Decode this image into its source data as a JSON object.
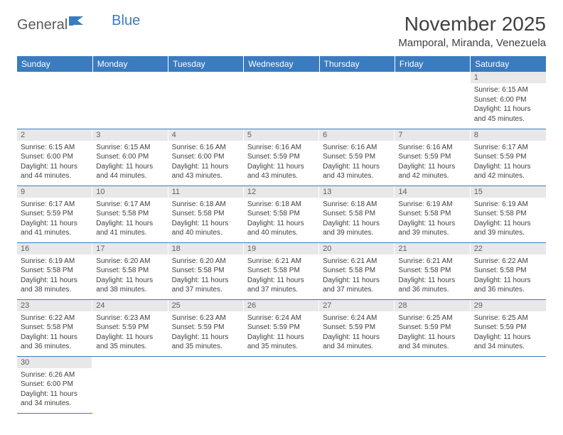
{
  "logo": {
    "word1": "General",
    "word2": "Blue",
    "flag_color": "#3b7bbf",
    "text_color": "#5a5a5a"
  },
  "title": "November 2025",
  "location": "Mamporal, Miranda, Venezuela",
  "colors": {
    "header_bg": "#3b7bbf",
    "header_fg": "#ffffff",
    "daynum_bg": "#e8e8e8",
    "divider": "#3b7bbf",
    "body_text": "#404040"
  },
  "weekdays": [
    "Sunday",
    "Monday",
    "Tuesday",
    "Wednesday",
    "Thursday",
    "Friday",
    "Saturday"
  ],
  "weeks": [
    [
      null,
      null,
      null,
      null,
      null,
      null,
      {
        "n": "1",
        "sr": "Sunrise: 6:15 AM",
        "ss": "Sunset: 6:00 PM",
        "dl1": "Daylight: 11 hours",
        "dl2": "and 45 minutes."
      }
    ],
    [
      {
        "n": "2",
        "sr": "Sunrise: 6:15 AM",
        "ss": "Sunset: 6:00 PM",
        "dl1": "Daylight: 11 hours",
        "dl2": "and 44 minutes."
      },
      {
        "n": "3",
        "sr": "Sunrise: 6:15 AM",
        "ss": "Sunset: 6:00 PM",
        "dl1": "Daylight: 11 hours",
        "dl2": "and 44 minutes."
      },
      {
        "n": "4",
        "sr": "Sunrise: 6:16 AM",
        "ss": "Sunset: 6:00 PM",
        "dl1": "Daylight: 11 hours",
        "dl2": "and 43 minutes."
      },
      {
        "n": "5",
        "sr": "Sunrise: 6:16 AM",
        "ss": "Sunset: 5:59 PM",
        "dl1": "Daylight: 11 hours",
        "dl2": "and 43 minutes."
      },
      {
        "n": "6",
        "sr": "Sunrise: 6:16 AM",
        "ss": "Sunset: 5:59 PM",
        "dl1": "Daylight: 11 hours",
        "dl2": "and 43 minutes."
      },
      {
        "n": "7",
        "sr": "Sunrise: 6:16 AM",
        "ss": "Sunset: 5:59 PM",
        "dl1": "Daylight: 11 hours",
        "dl2": "and 42 minutes."
      },
      {
        "n": "8",
        "sr": "Sunrise: 6:17 AM",
        "ss": "Sunset: 5:59 PM",
        "dl1": "Daylight: 11 hours",
        "dl2": "and 42 minutes."
      }
    ],
    [
      {
        "n": "9",
        "sr": "Sunrise: 6:17 AM",
        "ss": "Sunset: 5:59 PM",
        "dl1": "Daylight: 11 hours",
        "dl2": "and 41 minutes."
      },
      {
        "n": "10",
        "sr": "Sunrise: 6:17 AM",
        "ss": "Sunset: 5:58 PM",
        "dl1": "Daylight: 11 hours",
        "dl2": "and 41 minutes."
      },
      {
        "n": "11",
        "sr": "Sunrise: 6:18 AM",
        "ss": "Sunset: 5:58 PM",
        "dl1": "Daylight: 11 hours",
        "dl2": "and 40 minutes."
      },
      {
        "n": "12",
        "sr": "Sunrise: 6:18 AM",
        "ss": "Sunset: 5:58 PM",
        "dl1": "Daylight: 11 hours",
        "dl2": "and 40 minutes."
      },
      {
        "n": "13",
        "sr": "Sunrise: 6:18 AM",
        "ss": "Sunset: 5:58 PM",
        "dl1": "Daylight: 11 hours",
        "dl2": "and 39 minutes."
      },
      {
        "n": "14",
        "sr": "Sunrise: 6:19 AM",
        "ss": "Sunset: 5:58 PM",
        "dl1": "Daylight: 11 hours",
        "dl2": "and 39 minutes."
      },
      {
        "n": "15",
        "sr": "Sunrise: 6:19 AM",
        "ss": "Sunset: 5:58 PM",
        "dl1": "Daylight: 11 hours",
        "dl2": "and 39 minutes."
      }
    ],
    [
      {
        "n": "16",
        "sr": "Sunrise: 6:19 AM",
        "ss": "Sunset: 5:58 PM",
        "dl1": "Daylight: 11 hours",
        "dl2": "and 38 minutes."
      },
      {
        "n": "17",
        "sr": "Sunrise: 6:20 AM",
        "ss": "Sunset: 5:58 PM",
        "dl1": "Daylight: 11 hours",
        "dl2": "and 38 minutes."
      },
      {
        "n": "18",
        "sr": "Sunrise: 6:20 AM",
        "ss": "Sunset: 5:58 PM",
        "dl1": "Daylight: 11 hours",
        "dl2": "and 37 minutes."
      },
      {
        "n": "19",
        "sr": "Sunrise: 6:21 AM",
        "ss": "Sunset: 5:58 PM",
        "dl1": "Daylight: 11 hours",
        "dl2": "and 37 minutes."
      },
      {
        "n": "20",
        "sr": "Sunrise: 6:21 AM",
        "ss": "Sunset: 5:58 PM",
        "dl1": "Daylight: 11 hours",
        "dl2": "and 37 minutes."
      },
      {
        "n": "21",
        "sr": "Sunrise: 6:21 AM",
        "ss": "Sunset: 5:58 PM",
        "dl1": "Daylight: 11 hours",
        "dl2": "and 36 minutes."
      },
      {
        "n": "22",
        "sr": "Sunrise: 6:22 AM",
        "ss": "Sunset: 5:58 PM",
        "dl1": "Daylight: 11 hours",
        "dl2": "and 36 minutes."
      }
    ],
    [
      {
        "n": "23",
        "sr": "Sunrise: 6:22 AM",
        "ss": "Sunset: 5:58 PM",
        "dl1": "Daylight: 11 hours",
        "dl2": "and 36 minutes."
      },
      {
        "n": "24",
        "sr": "Sunrise: 6:23 AM",
        "ss": "Sunset: 5:59 PM",
        "dl1": "Daylight: 11 hours",
        "dl2": "and 35 minutes."
      },
      {
        "n": "25",
        "sr": "Sunrise: 6:23 AM",
        "ss": "Sunset: 5:59 PM",
        "dl1": "Daylight: 11 hours",
        "dl2": "and 35 minutes."
      },
      {
        "n": "26",
        "sr": "Sunrise: 6:24 AM",
        "ss": "Sunset: 5:59 PM",
        "dl1": "Daylight: 11 hours",
        "dl2": "and 35 minutes."
      },
      {
        "n": "27",
        "sr": "Sunrise: 6:24 AM",
        "ss": "Sunset: 5:59 PM",
        "dl1": "Daylight: 11 hours",
        "dl2": "and 34 minutes."
      },
      {
        "n": "28",
        "sr": "Sunrise: 6:25 AM",
        "ss": "Sunset: 5:59 PM",
        "dl1": "Daylight: 11 hours",
        "dl2": "and 34 minutes."
      },
      {
        "n": "29",
        "sr": "Sunrise: 6:25 AM",
        "ss": "Sunset: 5:59 PM",
        "dl1": "Daylight: 11 hours",
        "dl2": "and 34 minutes."
      }
    ],
    [
      {
        "n": "30",
        "sr": "Sunrise: 6:26 AM",
        "ss": "Sunset: 6:00 PM",
        "dl1": "Daylight: 11 hours",
        "dl2": "and 34 minutes."
      },
      null,
      null,
      null,
      null,
      null,
      null
    ]
  ]
}
